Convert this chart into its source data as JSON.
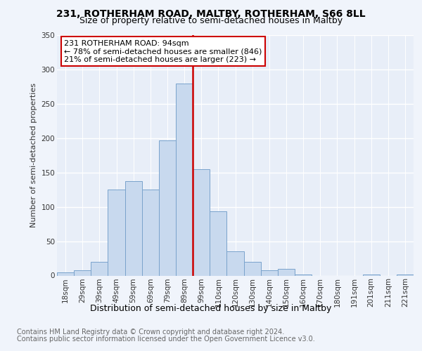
{
  "title_line1": "231, ROTHERHAM ROAD, MALTBY, ROTHERHAM, S66 8LL",
  "title_line2": "Size of property relative to semi-detached houses in Maltby",
  "xlabel": "Distribution of semi-detached houses by size in Maltby",
  "ylabel": "Number of semi-detached properties",
  "annotation_line1": "231 ROTHERHAM ROAD: 94sqm",
  "annotation_line2": "← 78% of semi-detached houses are smaller (846)",
  "annotation_line3": "21% of semi-detached houses are larger (223) →",
  "footnote1": "Contains HM Land Registry data © Crown copyright and database right 2024.",
  "footnote2": "Contains public sector information licensed under the Open Government Licence v3.0.",
  "bar_categories": [
    "18sqm",
    "29sqm",
    "39sqm",
    "49sqm",
    "59sqm",
    "69sqm",
    "79sqm",
    "89sqm",
    "99sqm",
    "110sqm",
    "120sqm",
    "130sqm",
    "140sqm",
    "150sqm",
    "160sqm",
    "170sqm",
    "180sqm",
    "191sqm",
    "201sqm",
    "211sqm",
    "221sqm"
  ],
  "bar_values": [
    5,
    8,
    20,
    125,
    137,
    125,
    197,
    280,
    155,
    93,
    35,
    20,
    8,
    10,
    2,
    0,
    0,
    0,
    2,
    0,
    2
  ],
  "bar_color": "#c8d9ee",
  "bar_edge_color": "#7aa3cc",
  "highlight_color": "#cc0000",
  "ylim": [
    0,
    350
  ],
  "yticks": [
    0,
    50,
    100,
    150,
    200,
    250,
    300,
    350
  ],
  "annotation_box_color": "#ffffff",
  "annotation_box_edge": "#cc0000",
  "background_color": "#f0f4fb",
  "plot_background": "#e8eef8",
  "title_fontsize": 10,
  "subtitle_fontsize": 9,
  "ylabel_fontsize": 8,
  "xlabel_fontsize": 9,
  "tick_fontsize": 7.5,
  "annotation_fontsize": 8,
  "footnote_fontsize": 7
}
